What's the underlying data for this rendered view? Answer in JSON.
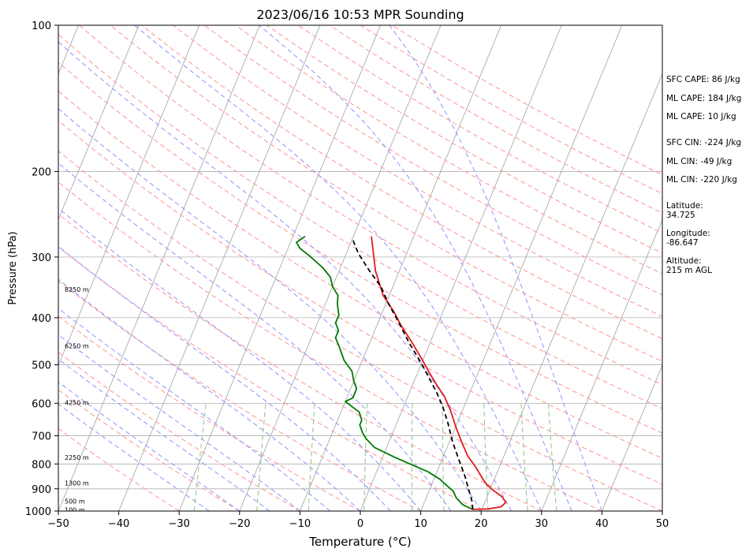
{
  "chart_data": {
    "type": "line",
    "diagram": "skew-T log-P",
    "title": "2023/06/16 10:53 MPR Sounding",
    "xlabel": "Temperature (°C)",
    "ylabel": "Pressure (hPa)",
    "xlim": [
      -50,
      50
    ],
    "ylim": [
      1000,
      100
    ],
    "y_scale": "log",
    "grid": true,
    "x_ticks": [
      -50,
      -40,
      -30,
      -20,
      -10,
      0,
      10,
      20,
      30,
      40,
      50
    ],
    "x_tick_labels": [
      "−50",
      "−40",
      "−30",
      "−20",
      "−10",
      "0",
      "10",
      "20",
      "30",
      "40",
      "50"
    ],
    "y_ticks": [
      1000,
      900,
      800,
      700,
      600,
      500,
      400,
      300,
      200,
      100
    ],
    "y_tick_labels": [
      "1000",
      "900",
      "800",
      "700",
      "600",
      "500",
      "400",
      "300",
      "200",
      "100"
    ],
    "series": [
      {
        "color": "#e31a1c",
        "style": "solid",
        "points": [
          [
            18.5,
            992
          ],
          [
            21,
            990
          ],
          [
            23,
            980
          ],
          [
            23.5,
            960
          ],
          [
            22.5,
            935
          ],
          [
            20.5,
            905
          ],
          [
            19,
            880
          ],
          [
            17.7,
            850
          ],
          [
            16,
            810
          ],
          [
            14,
            770
          ],
          [
            12,
            720
          ],
          [
            10,
            670
          ],
          [
            8,
            620
          ],
          [
            6,
            580
          ],
          [
            4,
            550
          ],
          [
            2,
            520
          ],
          [
            0,
            490
          ],
          [
            -3,
            450
          ],
          [
            -6,
            415
          ],
          [
            -8,
            390
          ],
          [
            -11,
            360
          ],
          [
            -14,
            320
          ],
          [
            -17,
            272
          ]
        ]
      },
      {
        "color": "#007a00",
        "style": "solid",
        "points": [
          [
            18.5,
            992
          ],
          [
            16.5,
            970
          ],
          [
            15,
            940
          ],
          [
            14,
            910
          ],
          [
            12.5,
            885
          ],
          [
            11,
            860
          ],
          [
            8.5,
            830
          ],
          [
            5,
            800
          ],
          [
            2,
            775
          ],
          [
            -2,
            740
          ],
          [
            -4,
            710
          ],
          [
            -5,
            690
          ],
          [
            -6,
            665
          ],
          [
            -6,
            650
          ],
          [
            -7,
            625
          ],
          [
            -9,
            605
          ],
          [
            -10,
            595
          ],
          [
            -9,
            585
          ],
          [
            -9,
            560
          ],
          [
            -10,
            540
          ],
          [
            -11,
            515
          ],
          [
            -13,
            490
          ],
          [
            -15,
            455
          ],
          [
            -16,
            440
          ],
          [
            -16,
            425
          ],
          [
            -17,
            410
          ],
          [
            -17,
            395
          ],
          [
            -18,
            375
          ],
          [
            -18.5,
            360
          ],
          [
            -20,
            345
          ],
          [
            -21,
            330
          ],
          [
            -23,
            315
          ],
          [
            -26,
            298
          ],
          [
            -28,
            288
          ],
          [
            -29,
            280
          ],
          [
            -28,
            272
          ]
        ]
      },
      {
        "color": "#000000",
        "style": "dashed",
        "points": [
          [
            18.5,
            992
          ],
          [
            17.7,
            950
          ],
          [
            16.5,
            905
          ],
          [
            15,
            850
          ],
          [
            13,
            790
          ],
          [
            10.5,
            720
          ],
          [
            8.5,
            660
          ],
          [
            6.5,
            610
          ],
          [
            4.5,
            570
          ],
          [
            1.5,
            520
          ],
          [
            -0.5,
            490
          ],
          [
            -3.5,
            450
          ],
          [
            -6.5,
            410
          ],
          [
            -9.5,
            375
          ],
          [
            -12,
            345
          ],
          [
            -15,
            320
          ],
          [
            -18,
            295
          ],
          [
            -20,
            275
          ]
        ]
      }
    ],
    "annotations": {
      "indices": [
        "SFC CAPE: 86 J/kg",
        "ML CAPE: 184 J/kg",
        "ML CAPE: 10 J/kg",
        "SFC CIN: -224 J/kg",
        "ML CIN: -49 J/kg",
        "ML CIN: -220 J/kg"
      ],
      "latitude": [
        "Latitude:",
        "34.725"
      ],
      "longitude": [
        "Longitude:",
        "-86.647"
      ],
      "altitude": [
        "Altitude:",
        "215 m AGL"
      ]
    },
    "height_labels": [
      {
        "text": "8250 m",
        "pressure": 350
      },
      {
        "text": "6250 m",
        "pressure": 457
      },
      {
        "text": "4250 m",
        "pressure": 598
      },
      {
        "text": "2250 m",
        "pressure": 776
      },
      {
        "text": "1300 m",
        "pressure": 876
      },
      {
        "text": "500 m",
        "pressure": 955
      },
      {
        "text": "100 m",
        "pressure": 995
      }
    ],
    "colors": {
      "isotherm": "#a0a0a0",
      "dry_adiabat": "#ff9a9a",
      "moist_adiabat": "#9a9aff",
      "mixing_ratio": "#8fcc8f",
      "isobar": "#b0b0b0"
    }
  }
}
